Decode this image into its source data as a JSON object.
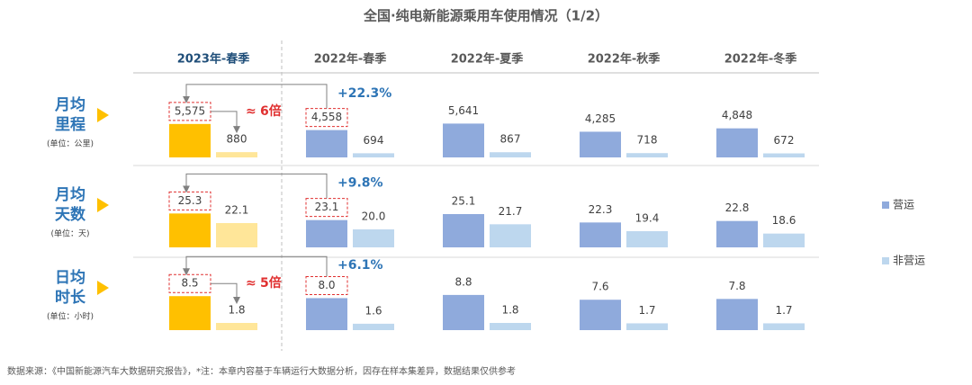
{
  "title": "全国·纯电新能源乘用车使用情况（1/2）",
  "categories": [
    "2023年-春季",
    "2022年-春季",
    "2022年-夏季",
    "2022年-秋季",
    "2022年-冬季"
  ],
  "highlight_category": 0,
  "source": "数据来源：《中国新能源汽车大数据研究报告》，*注：本章内容基于车辆运行大数据分析，因存在样本集差异，数据结果仅供参考",
  "chart_data": [
    {
      "type": "bar",
      "title": [
        "月均",
        "里程"
      ],
      "unit": "(单位：公里)",
      "ylim": [
        0,
        6000
      ],
      "series": [
        {
          "name": "营运",
          "color": "#8FAADC",
          "highlight_color": "#FFC000",
          "values": [
            5575,
            4558,
            5641,
            4285,
            4848
          ],
          "value_labels": [
            "5,575",
            "4,558",
            "5,641",
            "4,285",
            "4,848"
          ]
        },
        {
          "name": "非营运",
          "color": "#BDD7EE",
          "highlight_color": "#FFE699",
          "values": [
            880,
            694,
            867,
            718,
            672
          ],
          "value_labels": [
            "880",
            "694",
            "867",
            "718",
            "672"
          ]
        }
      ],
      "change": "+22.3%",
      "approx": "≈",
      "ratio": "6倍"
    },
    {
      "type": "bar",
      "title": [
        "月均",
        "天数"
      ],
      "unit": "(单位：天)",
      "ylim": [
        14,
        26
      ],
      "series": [
        {
          "name": "营运",
          "color": "#8FAADC",
          "highlight_color": "#FFC000",
          "values": [
            25.3,
            23.1,
            25.1,
            22.3,
            22.8
          ],
          "value_labels": [
            "25.3",
            "23.1",
            "25.1",
            "22.3",
            "22.8"
          ]
        },
        {
          "name": "非营运",
          "color": "#BDD7EE",
          "highlight_color": "#FFE699",
          "values": [
            22.1,
            20.0,
            21.7,
            19.4,
            18.6
          ],
          "value_labels": [
            "22.1",
            "20.0",
            "21.7",
            "19.4",
            "18.6"
          ]
        }
      ],
      "change": "+9.8%"
    },
    {
      "type": "bar",
      "title": [
        "日均",
        "时长"
      ],
      "unit": "(单位：小时)",
      "ylim": [
        0,
        9
      ],
      "series": [
        {
          "name": "营运",
          "color": "#8FAADC",
          "highlight_color": "#FFC000",
          "values": [
            8.5,
            8.0,
            8.8,
            7.6,
            7.8
          ],
          "value_labels": [
            "8.5",
            "8.0",
            "8.8",
            "7.6",
            "7.8"
          ]
        },
        {
          "name": "非营运",
          "color": "#BDD7EE",
          "highlight_color": "#FFE699",
          "values": [
            1.8,
            1.6,
            1.8,
            1.7,
            1.7
          ],
          "value_labels": [
            "1.8",
            "1.6",
            "1.8",
            "1.7",
            "1.7"
          ]
        }
      ],
      "change": "+6.1%",
      "approx": "≈",
      "ratio": "5倍"
    }
  ]
}
